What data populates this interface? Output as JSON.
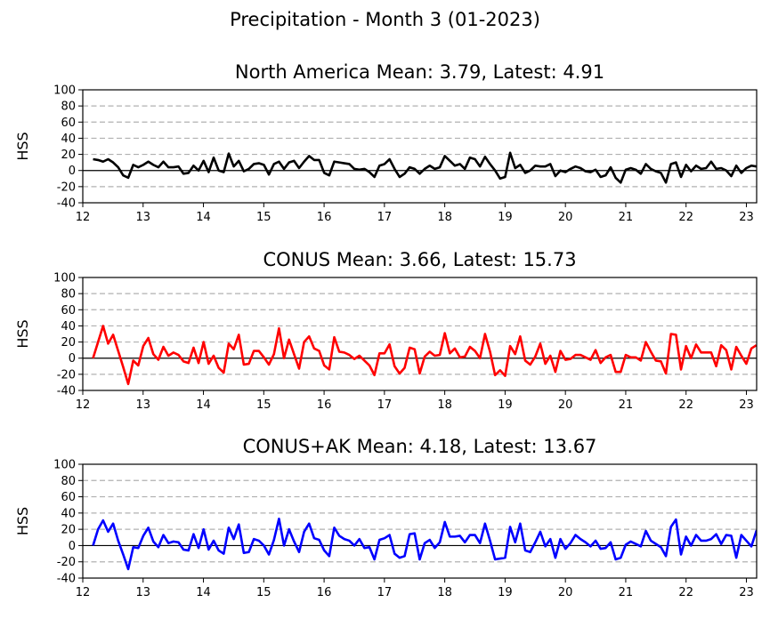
{
  "figure_title": "Precipitation - Month 3 (01-2023)",
  "chart_data": [
    {
      "type": "line",
      "title": "North America Mean: 3.79, Latest: 4.91",
      "xlabel": "",
      "ylabel": "HSS",
      "xlim": [
        12.0,
        23.17
      ],
      "ylim": [
        -40,
        100
      ],
      "xticks": [
        "12",
        "13",
        "14",
        "15",
        "16",
        "17",
        "18",
        "19",
        "20",
        "21",
        "22",
        "23"
      ],
      "yticks": [
        "-40",
        "-20",
        "0",
        "20",
        "40",
        "60",
        "80",
        "100"
      ],
      "grid": "horizontal dashed at 20, 40, 60, 80; solid zero line",
      "color": "#000000",
      "x_start": 12.17,
      "x_step": 0.0833,
      "values": [
        14,
        13,
        11,
        14,
        10,
        4,
        -6,
        -9,
        7,
        4,
        7,
        11,
        7,
        4,
        11,
        4,
        4,
        5,
        -4,
        -3,
        6,
        0,
        12,
        -2,
        16,
        0,
        -2,
        21,
        5,
        12,
        -1,
        2,
        8,
        9,
        7,
        -5,
        8,
        11,
        2,
        10,
        12,
        3,
        11,
        18,
        13,
        13,
        -3,
        -6,
        11,
        10,
        9,
        8,
        2,
        1,
        2,
        -2,
        -8,
        6,
        8,
        14,
        2,
        -8,
        -4,
        4,
        2,
        -4,
        2,
        6,
        2,
        4,
        18,
        12,
        6,
        8,
        2,
        16,
        14,
        5,
        17,
        8,
        0,
        -10,
        -8,
        22,
        3,
        7,
        -3,
        0,
        6,
        5,
        5,
        8,
        -7,
        0,
        -2,
        2,
        5,
        3,
        -1,
        -2,
        1,
        -8,
        -6,
        4,
        -9,
        -15,
        1,
        3,
        1,
        -4,
        8,
        2,
        -1,
        -3,
        -15,
        8,
        10,
        -8,
        7,
        -1,
        6,
        2,
        3,
        11,
        2,
        3,
        0,
        -7,
        6,
        -3,
        3,
        6,
        5
      ]
    },
    {
      "type": "line",
      "title": "CONUS Mean: 3.66, Latest: 15.73",
      "xlabel": "",
      "ylabel": "HSS",
      "xlim": [
        12.0,
        23.17
      ],
      "ylim": [
        -40,
        100
      ],
      "xticks": [
        "12",
        "13",
        "14",
        "15",
        "16",
        "17",
        "18",
        "19",
        "20",
        "21",
        "22",
        "23"
      ],
      "yticks": [
        "-40",
        "-20",
        "0",
        "20",
        "40",
        "60",
        "80",
        "100"
      ],
      "grid": "horizontal dashed at 20, 40, 60, 80; solid zero line",
      "color": "#ff0000",
      "x_start": 12.17,
      "x_step": 0.0833,
      "values": [
        0,
        20,
        40,
        18,
        29,
        9,
        -11,
        -32,
        -3,
        -9,
        15,
        25,
        5,
        -2,
        14,
        3,
        7,
        4,
        -4,
        -6,
        13,
        -6,
        20,
        -7,
        3,
        -12,
        -18,
        18,
        11,
        29,
        -8,
        -7,
        9,
        9,
        1,
        -8,
        5,
        37,
        0,
        23,
        5,
        -13,
        20,
        27,
        12,
        9,
        -9,
        -14,
        26,
        8,
        7,
        4,
        -1,
        3,
        -3,
        -9,
        -21,
        6,
        6,
        17,
        -10,
        -19,
        -12,
        13,
        11,
        -19,
        2,
        8,
        3,
        4,
        31,
        6,
        12,
        1,
        2,
        14,
        9,
        0,
        30,
        8,
        -21,
        -15,
        -22,
        15,
        5,
        27,
        -3,
        -8,
        2,
        18,
        -7,
        3,
        -17,
        9,
        -2,
        -1,
        4,
        4,
        1,
        -2,
        10,
        -6,
        1,
        4,
        -17,
        -17,
        4,
        1,
        1,
        -3,
        20,
        8,
        -3,
        -4,
        -19,
        30,
        29,
        -14,
        15,
        0,
        17,
        7,
        7,
        7,
        -10,
        16,
        10,
        -14,
        14,
        3,
        -7,
        12,
        16
      ]
    },
    {
      "type": "line",
      "title": "CONUS+AK Mean: 4.18, Latest: 13.67",
      "xlabel": "",
      "ylabel": "HSS",
      "xlim": [
        12.0,
        23.17
      ],
      "ylim": [
        -40,
        100
      ],
      "xticks": [
        "12",
        "13",
        "14",
        "15",
        "16",
        "17",
        "18",
        "19",
        "20",
        "21",
        "22",
        "23"
      ],
      "yticks": [
        "-40",
        "-20",
        "0",
        "20",
        "40",
        "60",
        "80",
        "100"
      ],
      "grid": "horizontal dashed at 20, 40, 60, 80; solid zero line",
      "color": "#0000ff",
      "x_start": 12.17,
      "x_step": 0.0833,
      "values": [
        0,
        20,
        31,
        17,
        27,
        6,
        -11,
        -29,
        -2,
        -3,
        12,
        22,
        5,
        -2,
        13,
        3,
        5,
        4,
        -5,
        -6,
        14,
        -3,
        20,
        -5,
        6,
        -6,
        -10,
        22,
        8,
        26,
        -9,
        -8,
        8,
        6,
        0,
        -11,
        7,
        33,
        0,
        20,
        5,
        -8,
        17,
        27,
        9,
        7,
        -6,
        -13,
        22,
        12,
        8,
        6,
        0,
        8,
        -3,
        -2,
        -17,
        7,
        9,
        13,
        -10,
        -15,
        -13,
        14,
        15,
        -17,
        3,
        7,
        -3,
        4,
        29,
        11,
        11,
        12,
        4,
        13,
        13,
        3,
        27,
        6,
        -17,
        -16,
        -15,
        23,
        4,
        27,
        -6,
        -8,
        4,
        17,
        -1,
        8,
        -15,
        8,
        -4,
        3,
        13,
        8,
        4,
        -1,
        6,
        -4,
        -3,
        4,
        -17,
        -15,
        1,
        5,
        2,
        -1,
        18,
        6,
        2,
        -2,
        -13,
        23,
        32,
        -11,
        11,
        0,
        13,
        6,
        6,
        8,
        14,
        2,
        13,
        12,
        -15,
        13,
        6,
        -1,
        18,
        14
      ]
    }
  ]
}
